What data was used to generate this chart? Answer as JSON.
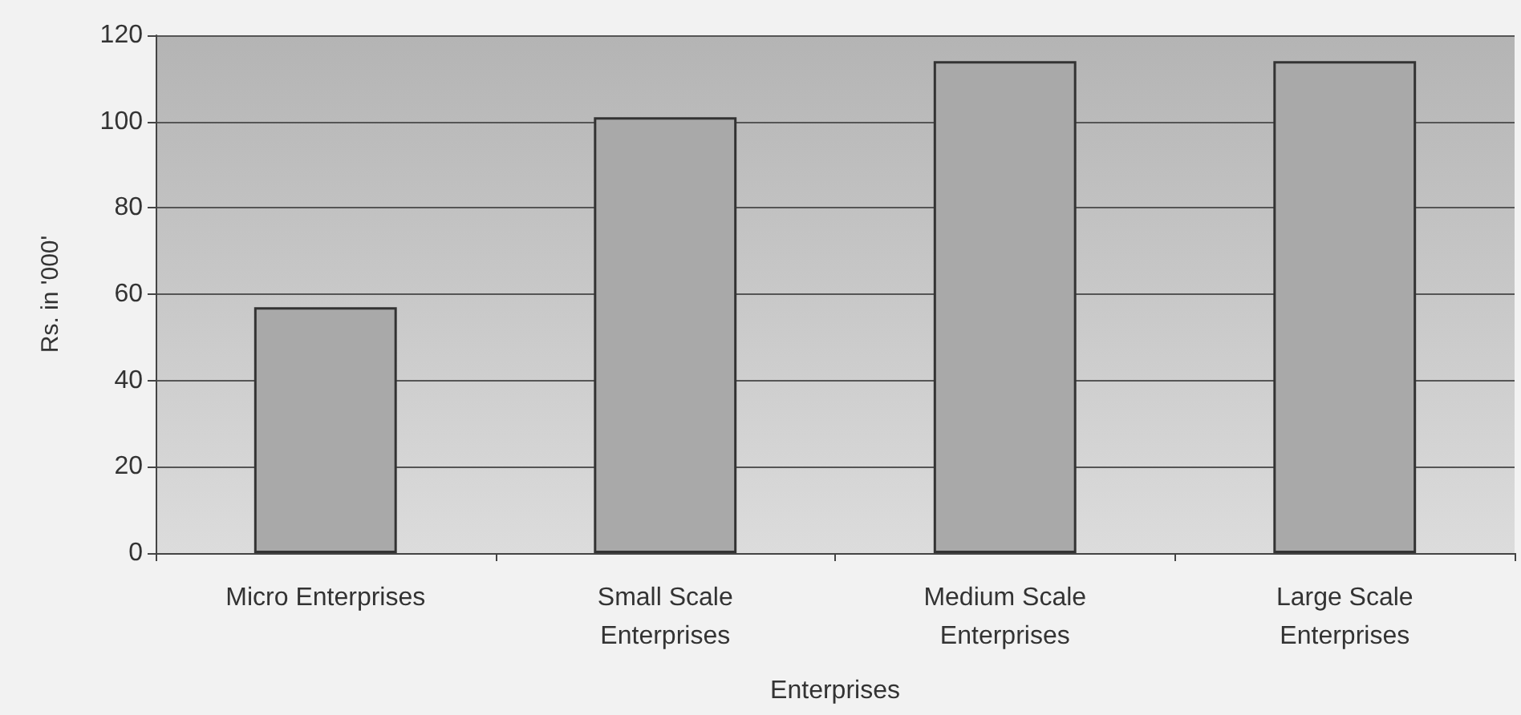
{
  "chart_data": {
    "type": "bar",
    "xlabel": "Enterprises",
    "ylabel": "Rs. in '000'",
    "categories": [
      "Micro Enterprises",
      "Small Scale\nEnterprises",
      "Medium Scale\nEnterprises",
      "Large Scale\nEnterprises"
    ],
    "values": [
      57,
      101,
      114,
      114
    ],
    "color": "#a9a9a9",
    "ylim": [
      0,
      120
    ],
    "yticks": [
      0,
      20,
      40,
      60,
      80,
      100,
      120
    ],
    "grid": "y"
  }
}
